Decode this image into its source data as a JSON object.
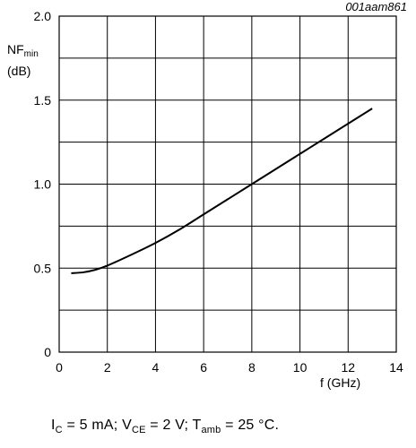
{
  "figure_ref": "001aam861",
  "chart_data": {
    "type": "line",
    "title": "",
    "ylabel": {
      "main": "NF",
      "sub": "min",
      "unit": "(dB)"
    },
    "xlabel": "f (GHz)",
    "xlim": [
      0,
      14
    ],
    "ylim": [
      0,
      2.0
    ],
    "x_ticks": [
      "0",
      "2",
      "4",
      "6",
      "8",
      "10",
      "12",
      "14"
    ],
    "y_ticks": [
      "0",
      "0.5",
      "1.0",
      "1.5",
      "2.0"
    ],
    "grid": true,
    "series": [
      {
        "x": [
          0.5,
          1.0,
          1.5,
          2.0,
          3.0,
          4.0,
          5.0,
          6.0,
          7.0,
          8.0,
          9.0,
          10.0,
          11.0,
          12.0,
          13.0
        ],
        "y": [
          0.47,
          0.475,
          0.49,
          0.515,
          0.58,
          0.65,
          0.73,
          0.82,
          0.91,
          1.0,
          1.09,
          1.18,
          1.27,
          1.36,
          1.45
        ]
      }
    ]
  },
  "conditions": {
    "ic_label": "I",
    "ic_sub": "C",
    "rest": " = 5 mA; V",
    "vce_sub": "CE",
    "mid": " = 2 V; T",
    "t_sub": "amb",
    "end": " = 25 °C."
  }
}
